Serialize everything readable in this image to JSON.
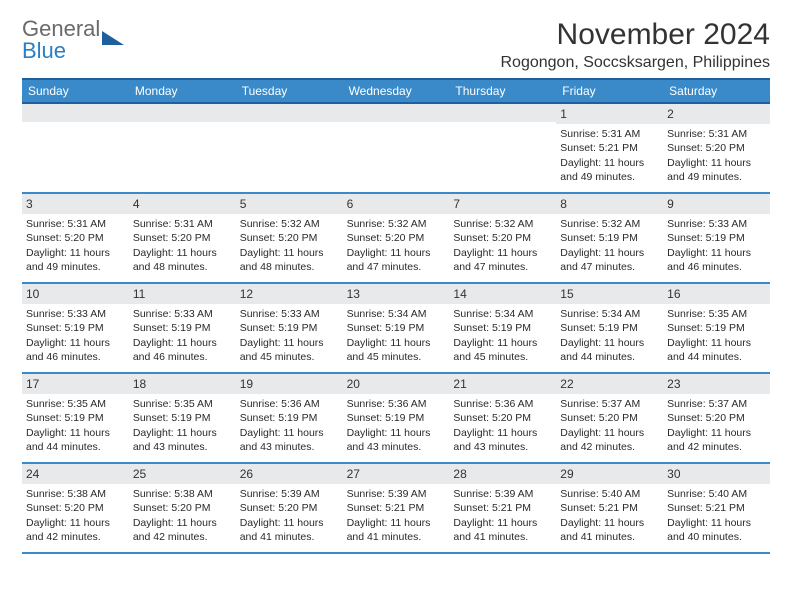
{
  "logo": {
    "general": "General",
    "blue": "Blue"
  },
  "title": "November 2024",
  "location": "Rogongon, Soccsksargen, Philippines",
  "colors": {
    "header_bg": "#3a8ac9",
    "border": "#1f5f9e",
    "daybar": "#e8e9ea",
    "text": "#2a2a2a"
  },
  "weekdays": [
    "Sunday",
    "Monday",
    "Tuesday",
    "Wednesday",
    "Thursday",
    "Friday",
    "Saturday"
  ],
  "weeks": [
    [
      {
        "blank": true
      },
      {
        "blank": true
      },
      {
        "blank": true
      },
      {
        "blank": true
      },
      {
        "blank": true
      },
      {
        "n": "1",
        "sunrise": "Sunrise: 5:31 AM",
        "sunset": "Sunset: 5:21 PM",
        "daylight": "Daylight: 11 hours and 49 minutes."
      },
      {
        "n": "2",
        "sunrise": "Sunrise: 5:31 AM",
        "sunset": "Sunset: 5:20 PM",
        "daylight": "Daylight: 11 hours and 49 minutes."
      }
    ],
    [
      {
        "n": "3",
        "sunrise": "Sunrise: 5:31 AM",
        "sunset": "Sunset: 5:20 PM",
        "daylight": "Daylight: 11 hours and 49 minutes."
      },
      {
        "n": "4",
        "sunrise": "Sunrise: 5:31 AM",
        "sunset": "Sunset: 5:20 PM",
        "daylight": "Daylight: 11 hours and 48 minutes."
      },
      {
        "n": "5",
        "sunrise": "Sunrise: 5:32 AM",
        "sunset": "Sunset: 5:20 PM",
        "daylight": "Daylight: 11 hours and 48 minutes."
      },
      {
        "n": "6",
        "sunrise": "Sunrise: 5:32 AM",
        "sunset": "Sunset: 5:20 PM",
        "daylight": "Daylight: 11 hours and 47 minutes."
      },
      {
        "n": "7",
        "sunrise": "Sunrise: 5:32 AM",
        "sunset": "Sunset: 5:20 PM",
        "daylight": "Daylight: 11 hours and 47 minutes."
      },
      {
        "n": "8",
        "sunrise": "Sunrise: 5:32 AM",
        "sunset": "Sunset: 5:19 PM",
        "daylight": "Daylight: 11 hours and 47 minutes."
      },
      {
        "n": "9",
        "sunrise": "Sunrise: 5:33 AM",
        "sunset": "Sunset: 5:19 PM",
        "daylight": "Daylight: 11 hours and 46 minutes."
      }
    ],
    [
      {
        "n": "10",
        "sunrise": "Sunrise: 5:33 AM",
        "sunset": "Sunset: 5:19 PM",
        "daylight": "Daylight: 11 hours and 46 minutes."
      },
      {
        "n": "11",
        "sunrise": "Sunrise: 5:33 AM",
        "sunset": "Sunset: 5:19 PM",
        "daylight": "Daylight: 11 hours and 46 minutes."
      },
      {
        "n": "12",
        "sunrise": "Sunrise: 5:33 AM",
        "sunset": "Sunset: 5:19 PM",
        "daylight": "Daylight: 11 hours and 45 minutes."
      },
      {
        "n": "13",
        "sunrise": "Sunrise: 5:34 AM",
        "sunset": "Sunset: 5:19 PM",
        "daylight": "Daylight: 11 hours and 45 minutes."
      },
      {
        "n": "14",
        "sunrise": "Sunrise: 5:34 AM",
        "sunset": "Sunset: 5:19 PM",
        "daylight": "Daylight: 11 hours and 45 minutes."
      },
      {
        "n": "15",
        "sunrise": "Sunrise: 5:34 AM",
        "sunset": "Sunset: 5:19 PM",
        "daylight": "Daylight: 11 hours and 44 minutes."
      },
      {
        "n": "16",
        "sunrise": "Sunrise: 5:35 AM",
        "sunset": "Sunset: 5:19 PM",
        "daylight": "Daylight: 11 hours and 44 minutes."
      }
    ],
    [
      {
        "n": "17",
        "sunrise": "Sunrise: 5:35 AM",
        "sunset": "Sunset: 5:19 PM",
        "daylight": "Daylight: 11 hours and 44 minutes."
      },
      {
        "n": "18",
        "sunrise": "Sunrise: 5:35 AM",
        "sunset": "Sunset: 5:19 PM",
        "daylight": "Daylight: 11 hours and 43 minutes."
      },
      {
        "n": "19",
        "sunrise": "Sunrise: 5:36 AM",
        "sunset": "Sunset: 5:19 PM",
        "daylight": "Daylight: 11 hours and 43 minutes."
      },
      {
        "n": "20",
        "sunrise": "Sunrise: 5:36 AM",
        "sunset": "Sunset: 5:19 PM",
        "daylight": "Daylight: 11 hours and 43 minutes."
      },
      {
        "n": "21",
        "sunrise": "Sunrise: 5:36 AM",
        "sunset": "Sunset: 5:20 PM",
        "daylight": "Daylight: 11 hours and 43 minutes."
      },
      {
        "n": "22",
        "sunrise": "Sunrise: 5:37 AM",
        "sunset": "Sunset: 5:20 PM",
        "daylight": "Daylight: 11 hours and 42 minutes."
      },
      {
        "n": "23",
        "sunrise": "Sunrise: 5:37 AM",
        "sunset": "Sunset: 5:20 PM",
        "daylight": "Daylight: 11 hours and 42 minutes."
      }
    ],
    [
      {
        "n": "24",
        "sunrise": "Sunrise: 5:38 AM",
        "sunset": "Sunset: 5:20 PM",
        "daylight": "Daylight: 11 hours and 42 minutes."
      },
      {
        "n": "25",
        "sunrise": "Sunrise: 5:38 AM",
        "sunset": "Sunset: 5:20 PM",
        "daylight": "Daylight: 11 hours and 42 minutes."
      },
      {
        "n": "26",
        "sunrise": "Sunrise: 5:39 AM",
        "sunset": "Sunset: 5:20 PM",
        "daylight": "Daylight: 11 hours and 41 minutes."
      },
      {
        "n": "27",
        "sunrise": "Sunrise: 5:39 AM",
        "sunset": "Sunset: 5:21 PM",
        "daylight": "Daylight: 11 hours and 41 minutes."
      },
      {
        "n": "28",
        "sunrise": "Sunrise: 5:39 AM",
        "sunset": "Sunset: 5:21 PM",
        "daylight": "Daylight: 11 hours and 41 minutes."
      },
      {
        "n": "29",
        "sunrise": "Sunrise: 5:40 AM",
        "sunset": "Sunset: 5:21 PM",
        "daylight": "Daylight: 11 hours and 41 minutes."
      },
      {
        "n": "30",
        "sunrise": "Sunrise: 5:40 AM",
        "sunset": "Sunset: 5:21 PM",
        "daylight": "Daylight: 11 hours and 40 minutes."
      }
    ]
  ]
}
